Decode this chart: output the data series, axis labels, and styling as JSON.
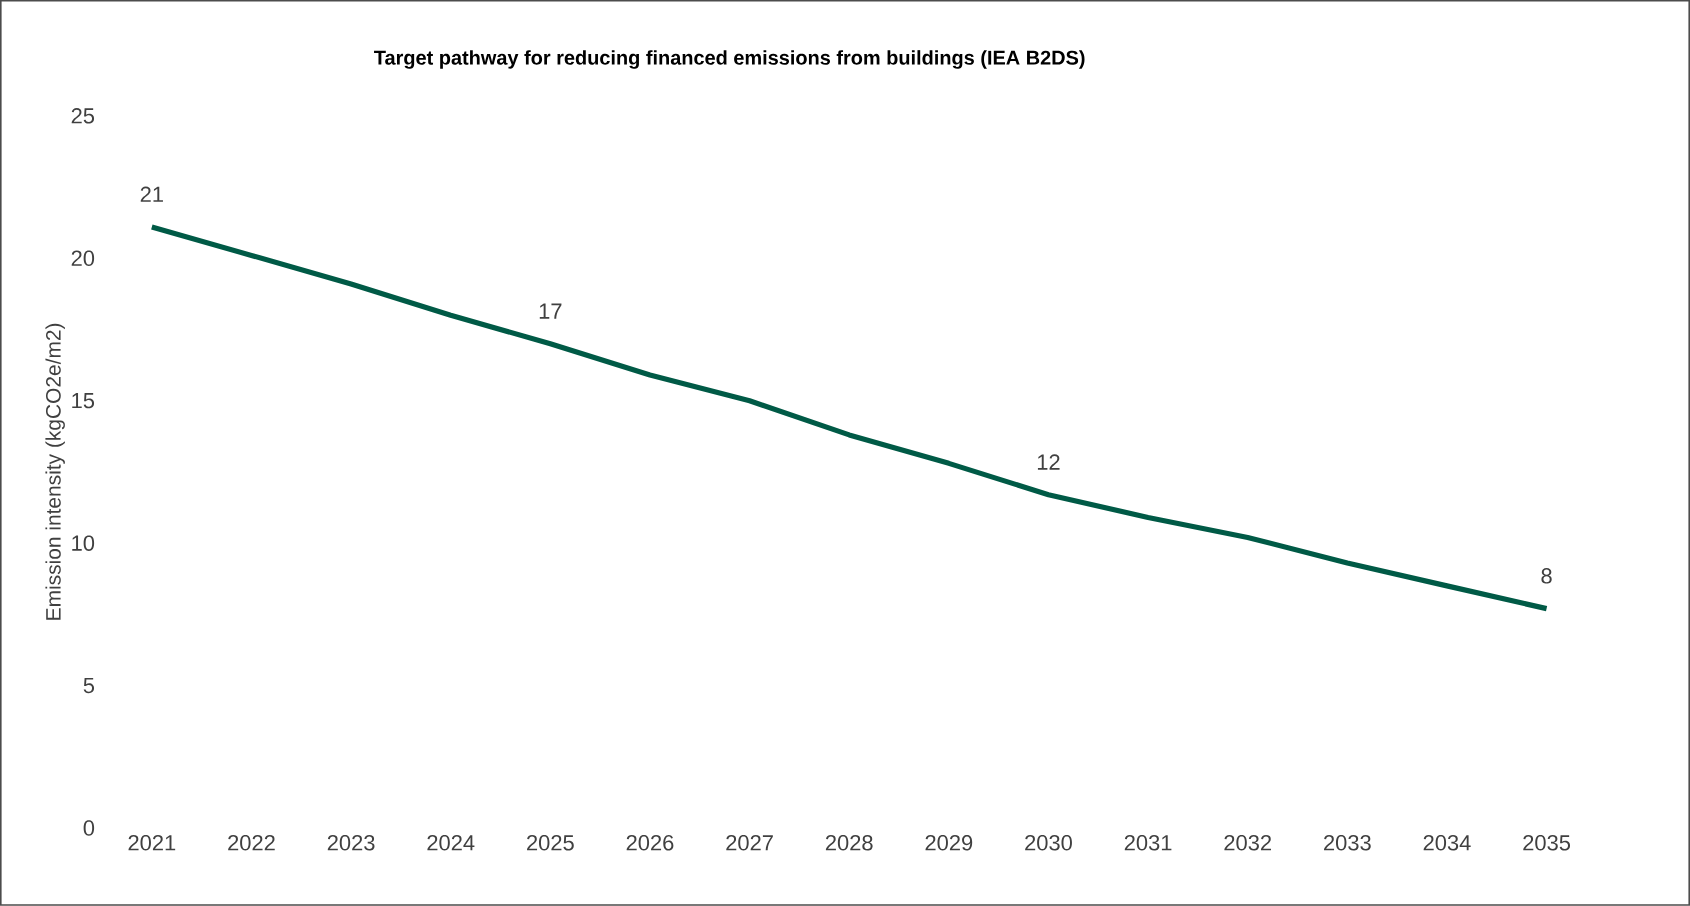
{
  "chart_data": {
    "type": "line",
    "title": "Target pathway for reducing financed emissions from buildings (IEA B2DS)",
    "ylabel": "Emission intensity (kgCO2e/m2)",
    "categories": [
      "2021",
      "2022",
      "2023",
      "2024",
      "2025",
      "2026",
      "2027",
      "2028",
      "2029",
      "2030",
      "2031",
      "2032",
      "2033",
      "2034",
      "2035"
    ],
    "values": [
      21.1,
      20.1,
      19.1,
      18.0,
      17.0,
      15.9,
      15.0,
      13.8,
      12.8,
      11.7,
      10.9,
      10.2,
      9.3,
      8.5,
      7.7
    ],
    "value_labels": [
      "21",
      null,
      null,
      null,
      "17",
      null,
      null,
      null,
      null,
      "12",
      null,
      null,
      null,
      null,
      "8"
    ],
    "color": "#005a46",
    "ylim": [
      0,
      25
    ],
    "yticks": [
      0,
      5,
      10,
      15,
      20,
      25
    ],
    "line_style": "solid"
  }
}
